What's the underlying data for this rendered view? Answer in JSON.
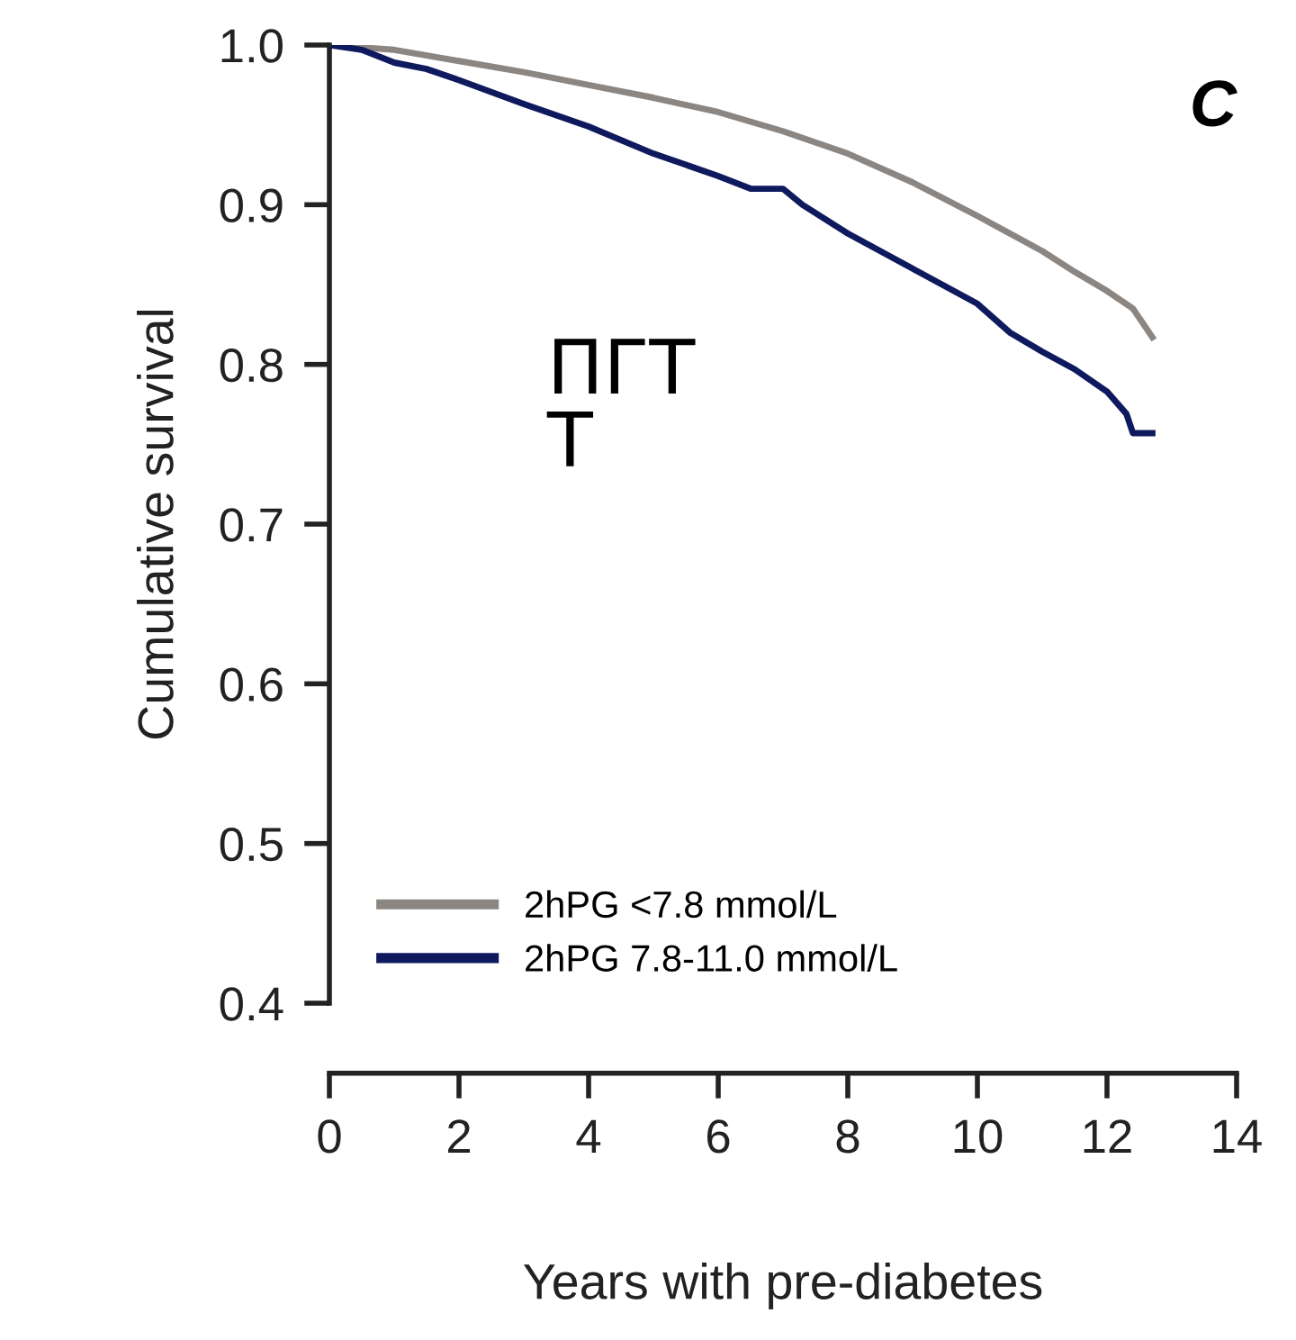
{
  "chart_data": {
    "type": "line",
    "title": "C",
    "xlabel": "Years with pre-diabetes",
    "ylabel": "Cumulative survival",
    "annotations": [
      "ПГТ\nТ"
    ],
    "series": [
      {
        "name": "2hPG <7.8 mmol/L",
        "color": "#8c8682",
        "x": [
          0,
          1,
          2,
          3,
          4,
          5,
          6,
          7,
          8,
          9,
          10,
          11,
          11.5,
          12,
          12.4,
          12.7
        ],
        "values": [
          1.0,
          0.997,
          0.99,
          0.983,
          0.975,
          0.967,
          0.958,
          0.946,
          0.932,
          0.914,
          0.893,
          0.871,
          0.858,
          0.846,
          0.835,
          0.817
        ]
      },
      {
        "name": "2hPG 7.8-11.0 mmol/L",
        "color": "#0f1a5e",
        "x": [
          0,
          0.5,
          1,
          1.5,
          2,
          3,
          4,
          5,
          6,
          6.5,
          7,
          7.3,
          8,
          9,
          10,
          10.5,
          11,
          11.5,
          12,
          12.3,
          12.4,
          12.7
        ],
        "values": [
          1.0,
          0.997,
          0.989,
          0.985,
          0.978,
          0.963,
          0.949,
          0.932,
          0.918,
          0.91,
          0.91,
          0.9,
          0.882,
          0.86,
          0.838,
          0.82,
          0.808,
          0.797,
          0.783,
          0.769,
          0.757,
          0.757
        ]
      }
    ],
    "xlim": [
      0,
      14
    ],
    "xticks": [
      0,
      2,
      4,
      6,
      8,
      10,
      12,
      14
    ],
    "ylim": [
      0.4,
      1.0
    ],
    "yticks": [
      0.4,
      0.5,
      0.6,
      0.7,
      0.8,
      0.9,
      {
        "value": 1.0,
        "label": "1.0"
      }
    ],
    "legend": "bottom left",
    "grid": false
  }
}
